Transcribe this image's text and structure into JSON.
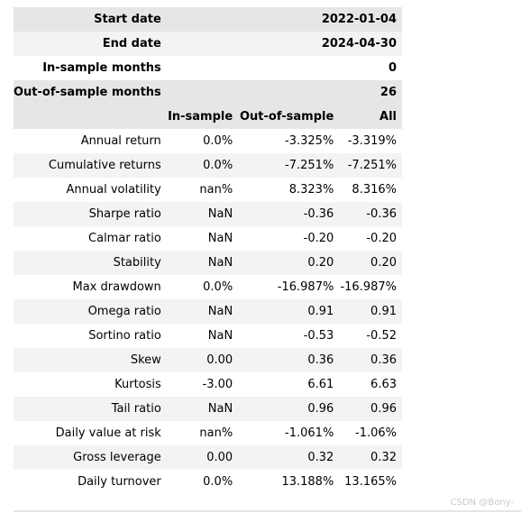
{
  "meta": [
    {
      "label": "Start date",
      "value": "2022-01-04"
    },
    {
      "label": "End date",
      "value": "2024-04-30"
    },
    {
      "label": "In-sample months",
      "value": "0"
    },
    {
      "label": "Out-of-sample months",
      "value": "26"
    }
  ],
  "columns": [
    "In-sample",
    "Out-of-sample",
    "All"
  ],
  "rows": [
    {
      "label": "Annual return",
      "in": "0.0%",
      "out": "-3.325%",
      "all": "-3.319%"
    },
    {
      "label": "Cumulative returns",
      "in": "0.0%",
      "out": "-7.251%",
      "all": "-7.251%"
    },
    {
      "label": "Annual volatility",
      "in": "nan%",
      "out": "8.323%",
      "all": "8.316%"
    },
    {
      "label": "Sharpe ratio",
      "in": "NaN",
      "out": "-0.36",
      "all": "-0.36"
    },
    {
      "label": "Calmar ratio",
      "in": "NaN",
      "out": "-0.20",
      "all": "-0.20"
    },
    {
      "label": "Stability",
      "in": "NaN",
      "out": "0.20",
      "all": "0.20"
    },
    {
      "label": "Max drawdown",
      "in": "0.0%",
      "out": "-16.987%",
      "all": "-16.987%"
    },
    {
      "label": "Omega ratio",
      "in": "NaN",
      "out": "0.91",
      "all": "0.91"
    },
    {
      "label": "Sortino ratio",
      "in": "NaN",
      "out": "-0.53",
      "all": "-0.52"
    },
    {
      "label": "Skew",
      "in": "0.00",
      "out": "0.36",
      "all": "0.36"
    },
    {
      "label": "Kurtosis",
      "in": "-3.00",
      "out": "6.61",
      "all": "6.63"
    },
    {
      "label": "Tail ratio",
      "in": "NaN",
      "out": "0.96",
      "all": "0.96"
    },
    {
      "label": "Daily value at risk",
      "in": "nan%",
      "out": "-1.061%",
      "all": "-1.06%"
    },
    {
      "label": "Gross leverage",
      "in": "0.00",
      "out": "0.32",
      "all": "0.32"
    },
    {
      "label": "Daily turnover",
      "in": "0.0%",
      "out": "13.188%",
      "all": "13.165%"
    }
  ],
  "watermark": "CSDN @Bony-"
}
